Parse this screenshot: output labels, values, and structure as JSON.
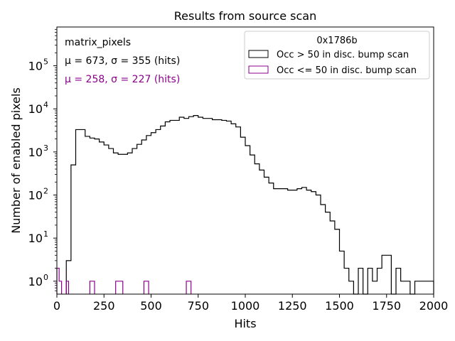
{
  "chart_data": {
    "type": "histogram",
    "title": "Results from source scan",
    "xlabel": "Hits",
    "ylabel": "Number of enabled pixels",
    "xlim": [
      0,
      2000
    ],
    "ylim_log10": [
      -0.3,
      5.9
    ],
    "yscale": "log",
    "bin_width": 25,
    "xticks": [
      0,
      250,
      500,
      750,
      1000,
      1250,
      1500,
      1750,
      2000
    ],
    "xtick_labels": [
      "0",
      "250",
      "500",
      "750",
      "1000",
      "1250",
      "1500",
      "1750",
      "2000"
    ],
    "ytick_exponents": [
      0,
      1,
      2,
      3,
      4,
      5
    ],
    "ytick_labels": [
      "10",
      "10",
      "10",
      "10",
      "10",
      "10"
    ],
    "ytick_superscripts": [
      "0",
      "1",
      "2",
      "3",
      "4",
      "5"
    ],
    "text_annotations": {
      "dataset": "matrix_pixels",
      "stats_main": "μ = 673, σ = 355 (hits)",
      "stats_low": "μ = 258, σ = 227 (hits)"
    },
    "legend": {
      "title": "0x1786b",
      "location": "upper right",
      "entries": [
        "Occ > 50 in disc. bump scan",
        "Occ <= 50 in disc. bump scan"
      ]
    },
    "series": [
      {
        "name": "Occ > 50 in disc. bump scan",
        "color": "#000000",
        "bins": [
          [
            50,
            75,
            3
          ],
          [
            75,
            100,
            500
          ],
          [
            100,
            125,
            3300
          ],
          [
            125,
            150,
            3300
          ],
          [
            150,
            175,
            2300
          ],
          [
            175,
            200,
            2100
          ],
          [
            200,
            225,
            2000
          ],
          [
            225,
            250,
            1700
          ],
          [
            250,
            275,
            1450
          ],
          [
            275,
            300,
            1200
          ],
          [
            300,
            325,
            950
          ],
          [
            325,
            350,
            880
          ],
          [
            350,
            375,
            880
          ],
          [
            375,
            400,
            950
          ],
          [
            400,
            425,
            1200
          ],
          [
            425,
            450,
            1500
          ],
          [
            450,
            475,
            1900
          ],
          [
            475,
            500,
            2400
          ],
          [
            500,
            525,
            2800
          ],
          [
            525,
            550,
            3300
          ],
          [
            550,
            575,
            4000
          ],
          [
            575,
            600,
            5000
          ],
          [
            600,
            625,
            5400
          ],
          [
            625,
            650,
            5400
          ],
          [
            650,
            675,
            6400
          ],
          [
            675,
            700,
            6000
          ],
          [
            700,
            725,
            6600
          ],
          [
            725,
            750,
            7000
          ],
          [
            750,
            775,
            6400
          ],
          [
            775,
            800,
            6000
          ],
          [
            800,
            825,
            6000
          ],
          [
            825,
            850,
            5600
          ],
          [
            850,
            875,
            5600
          ],
          [
            875,
            900,
            5400
          ],
          [
            900,
            925,
            5200
          ],
          [
            925,
            950,
            4500
          ],
          [
            950,
            975,
            3800
          ],
          [
            975,
            1000,
            2200
          ],
          [
            1000,
            1025,
            1400
          ],
          [
            1025,
            1050,
            850
          ],
          [
            1050,
            1075,
            530
          ],
          [
            1075,
            1100,
            380
          ],
          [
            1100,
            1125,
            260
          ],
          [
            1125,
            1150,
            190
          ],
          [
            1150,
            1175,
            140
          ],
          [
            1175,
            1200,
            140
          ],
          [
            1200,
            1225,
            140
          ],
          [
            1225,
            1250,
            130
          ],
          [
            1250,
            1275,
            130
          ],
          [
            1275,
            1300,
            140
          ],
          [
            1300,
            1325,
            150
          ],
          [
            1325,
            1350,
            130
          ],
          [
            1350,
            1375,
            120
          ],
          [
            1375,
            1400,
            100
          ],
          [
            1400,
            1425,
            60
          ],
          [
            1425,
            1450,
            40
          ],
          [
            1450,
            1475,
            25
          ],
          [
            1475,
            1500,
            16
          ],
          [
            1500,
            1525,
            5
          ],
          [
            1525,
            1550,
            2
          ],
          [
            1550,
            1575,
            1
          ],
          [
            1575,
            1600,
            0.5
          ],
          [
            1600,
            1625,
            2
          ],
          [
            1625,
            1650,
            0.5
          ],
          [
            1650,
            1675,
            2
          ],
          [
            1675,
            1700,
            1
          ],
          [
            1700,
            1725,
            2
          ],
          [
            1725,
            1750,
            4
          ],
          [
            1750,
            1775,
            4
          ],
          [
            1775,
            1800,
            0.5
          ],
          [
            1800,
            1825,
            2
          ],
          [
            1825,
            1850,
            1
          ],
          [
            1850,
            1875,
            1
          ],
          [
            1875,
            1900,
            0.5
          ],
          [
            1900,
            1925,
            1
          ],
          [
            1925,
            1950,
            1
          ],
          [
            1950,
            1975,
            1
          ],
          [
            1975,
            2000,
            1
          ]
        ]
      },
      {
        "name": "Occ <= 50 in disc. bump scan",
        "color": "#8b008b",
        "bins": [
          [
            0,
            12,
            2
          ],
          [
            12,
            25,
            1
          ],
          [
            50,
            62,
            1
          ],
          [
            175,
            200,
            1
          ],
          [
            312,
            337,
            1
          ],
          [
            337,
            350,
            1
          ],
          [
            462,
            487,
            1
          ],
          [
            687,
            712,
            1
          ]
        ]
      }
    ]
  }
}
